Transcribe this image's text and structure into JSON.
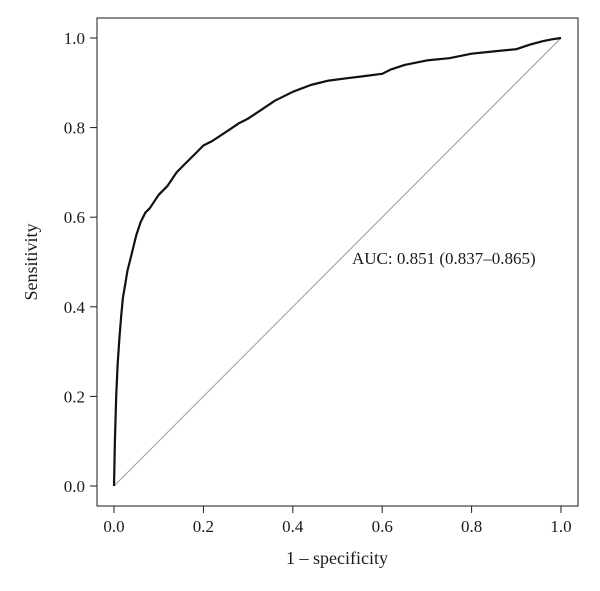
{
  "chart_data": {
    "type": "line",
    "title": "",
    "xlabel": "1 – specificity",
    "ylabel": "Sensitivity",
    "xlim": [
      0,
      1
    ],
    "ylim": [
      0,
      1
    ],
    "x_ticks": [
      0.0,
      0.2,
      0.4,
      0.6,
      0.8,
      1.0
    ],
    "x_tick_labels": [
      "0.0",
      "0.2",
      "0.4",
      "0.6",
      "0.8",
      "1.0"
    ],
    "y_ticks": [
      0.0,
      0.2,
      0.4,
      0.6,
      0.8,
      1.0
    ],
    "y_tick_labels": [
      "0.0",
      "0.2",
      "0.4",
      "0.6",
      "0.8",
      "1.0"
    ],
    "grid": false,
    "annotation": "AUC: 0.851 (0.837–0.865)",
    "series": [
      {
        "x": [
          0.0,
          0.002,
          0.005,
          0.008,
          0.012,
          0.016,
          0.02,
          0.025,
          0.03,
          0.04,
          0.05,
          0.06,
          0.07,
          0.08,
          0.1,
          0.12,
          0.14,
          0.16,
          0.18,
          0.2,
          0.22,
          0.25,
          0.28,
          0.3,
          0.33,
          0.36,
          0.4,
          0.44,
          0.48,
          0.52,
          0.56,
          0.6,
          0.62,
          0.65,
          0.7,
          0.75,
          0.8,
          0.85,
          0.9,
          0.93,
          0.96,
          0.98,
          1.0
        ],
        "y": [
          0.0,
          0.1,
          0.2,
          0.27,
          0.33,
          0.38,
          0.42,
          0.45,
          0.48,
          0.52,
          0.56,
          0.59,
          0.61,
          0.62,
          0.65,
          0.67,
          0.7,
          0.72,
          0.74,
          0.76,
          0.77,
          0.79,
          0.81,
          0.82,
          0.84,
          0.86,
          0.88,
          0.895,
          0.905,
          0.91,
          0.915,
          0.92,
          0.93,
          0.94,
          0.95,
          0.955,
          0.965,
          0.97,
          0.975,
          0.985,
          0.993,
          0.997,
          1.0
        ]
      },
      {
        "x": [
          0,
          1
        ],
        "y": [
          0,
          1
        ]
      }
    ]
  }
}
